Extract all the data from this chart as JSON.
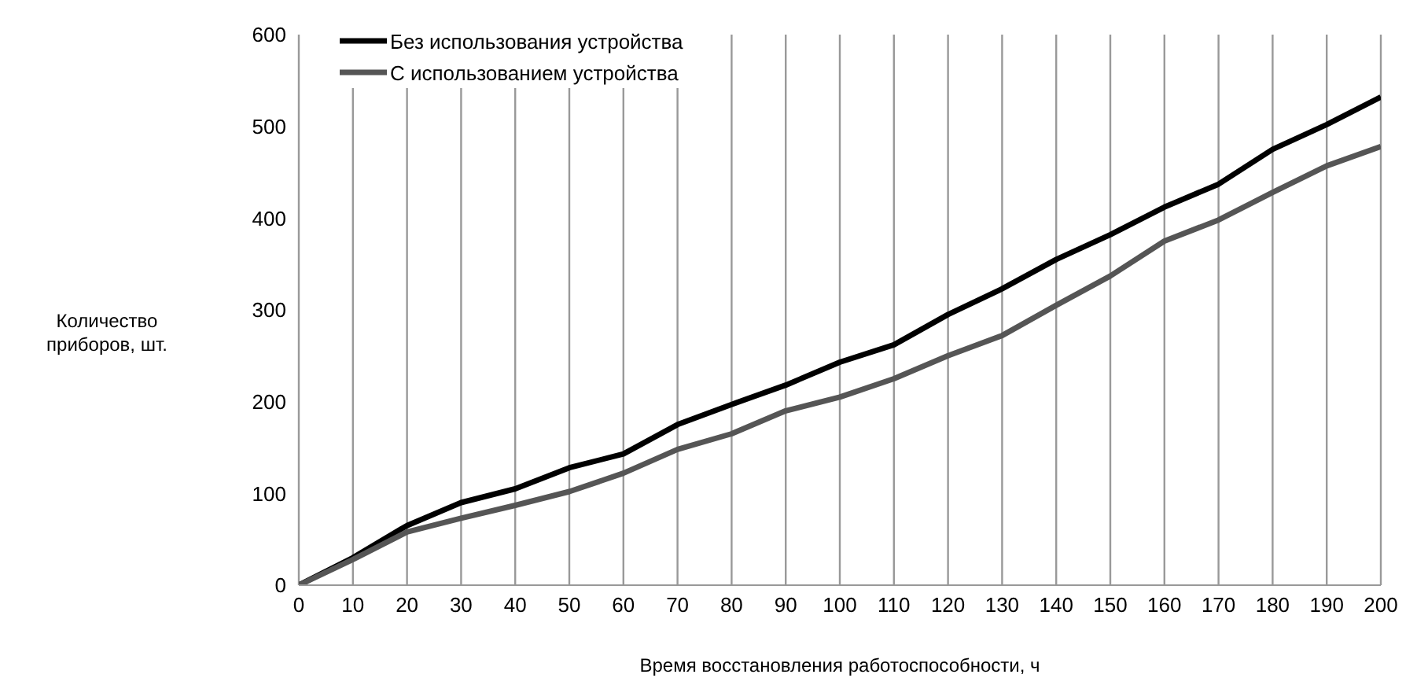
{
  "chart_data": {
    "type": "line",
    "xlabel": "Время восстановления работоспособности, ч",
    "ylabel": "Количество приборов, шт.",
    "x": [
      0,
      10,
      20,
      30,
      40,
      50,
      60,
      70,
      80,
      90,
      100,
      110,
      120,
      130,
      140,
      150,
      160,
      170,
      180,
      190,
      200
    ],
    "xlim": [
      0,
      200
    ],
    "xticks": [
      0,
      10,
      20,
      30,
      40,
      50,
      60,
      70,
      80,
      90,
      100,
      110,
      120,
      130,
      140,
      150,
      160,
      170,
      180,
      190,
      200
    ],
    "ylim": [
      0,
      600
    ],
    "yticks": [
      0,
      100,
      200,
      300,
      400,
      500,
      600
    ],
    "grid": "x",
    "legend": "top left",
    "marker": "none",
    "line_style": "solid",
    "series": [
      {
        "name": "Без использования устройства",
        "color": "#000000",
        "values": [
          0,
          30,
          65,
          90,
          105,
          128,
          143,
          175,
          197,
          218,
          243,
          262,
          295,
          323,
          355,
          382,
          412,
          437,
          475,
          502,
          532
        ]
      },
      {
        "name": "С использованием устройства",
        "color": "#555555",
        "values": [
          0,
          28,
          58,
          73,
          87,
          102,
          122,
          148,
          165,
          190,
          205,
          225,
          250,
          272,
          305,
          337,
          375,
          398,
          428,
          457,
          478
        ]
      }
    ]
  }
}
